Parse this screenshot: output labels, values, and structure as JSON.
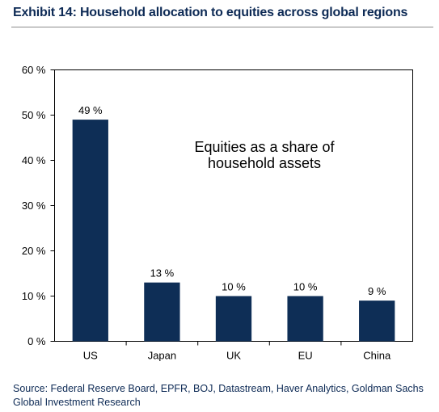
{
  "header": {
    "title": "Exhibit 14: Household allocation to equities across global regions"
  },
  "footer": {
    "source": "Source: Federal Reserve Board, EPFR, BOJ, Datastream, Haver Analytics, Goldman Sachs Global Investment Research"
  },
  "chart_data": {
    "type": "bar",
    "categories": [
      "US",
      "Japan",
      "UK",
      "EU",
      "China"
    ],
    "values": [
      49,
      13,
      10,
      10,
      9
    ],
    "value_labels": [
      "49 %",
      "13 %",
      "10 %",
      "10 %",
      "9 %"
    ],
    "y_ticks": [
      0,
      10,
      20,
      30,
      40,
      50,
      60
    ],
    "y_tick_labels": [
      "0 %",
      "10 %",
      "20 %",
      "30 %",
      "40 %",
      "50 %",
      "60 %"
    ],
    "ylim": [
      0,
      60
    ],
    "annotation": [
      "Equities as a share of",
      "household assets"
    ],
    "grid": false,
    "bar_color": "#0e2e56"
  }
}
